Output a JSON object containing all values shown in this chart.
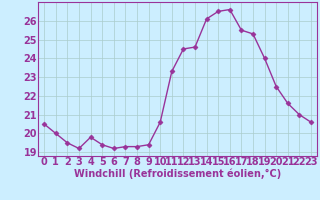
{
  "x": [
    0,
    1,
    2,
    3,
    4,
    5,
    6,
    7,
    8,
    9,
    10,
    11,
    12,
    13,
    14,
    15,
    16,
    17,
    18,
    19,
    20,
    21,
    22,
    23
  ],
  "y": [
    20.5,
    20.0,
    19.5,
    19.2,
    19.8,
    19.4,
    19.2,
    19.3,
    19.3,
    19.4,
    20.6,
    23.3,
    24.5,
    24.6,
    26.1,
    26.5,
    26.6,
    25.5,
    25.3,
    24.0,
    22.5,
    21.6,
    21.0,
    20.6
  ],
  "line_color": "#993399",
  "marker": "D",
  "marker_size": 2.5,
  "line_width": 1.0,
  "xlabel": "Windchill (Refroidissement éolien,°C)",
  "ylabel": "",
  "ylim": [
    18.8,
    27.0
  ],
  "xlim": [
    -0.5,
    23.5
  ],
  "yticks": [
    19,
    20,
    21,
    22,
    23,
    24,
    25,
    26
  ],
  "xticks": [
    0,
    1,
    2,
    3,
    4,
    5,
    6,
    7,
    8,
    9,
    10,
    11,
    12,
    13,
    14,
    15,
    16,
    17,
    18,
    19,
    20,
    21,
    22,
    23
  ],
  "background_color": "#cceeff",
  "grid_color": "#aacccc",
  "tick_color": "#993399",
  "label_color": "#993399",
  "xlabel_fontsize": 7,
  "tick_fontsize": 7
}
